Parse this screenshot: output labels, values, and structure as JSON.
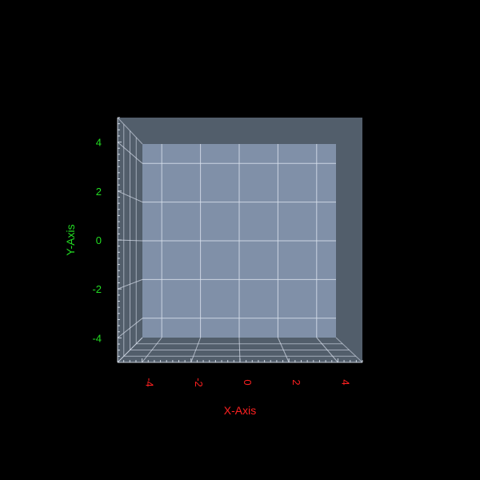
{
  "chart_data": {
    "type": "3d-axes",
    "title": "",
    "xlabel": "X-Axis",
    "ylabel": "Y-Axis",
    "zlabel": "",
    "xlim": [
      -5,
      5
    ],
    "ylim": [
      -5,
      5
    ],
    "zlim": [
      -5,
      5
    ],
    "x_ticks": [
      -4,
      -2,
      0,
      2,
      4
    ],
    "y_ticks": [
      -4,
      -2,
      0,
      2,
      4
    ],
    "x_tick_labels": [
      "-4",
      "-2",
      "0",
      "2",
      "4"
    ],
    "y_tick_labels": [
      "-4",
      "-2",
      "0",
      "2",
      "4"
    ],
    "grid": true,
    "series": []
  },
  "colors": {
    "background": "#000000",
    "back_wall": "#8090a8",
    "side_wall": "#525e6b",
    "floor": "#525e6b",
    "grid_line": "#d8e0ec",
    "x_axis_text": "#ff2020",
    "y_axis_text": "#22dd22"
  }
}
